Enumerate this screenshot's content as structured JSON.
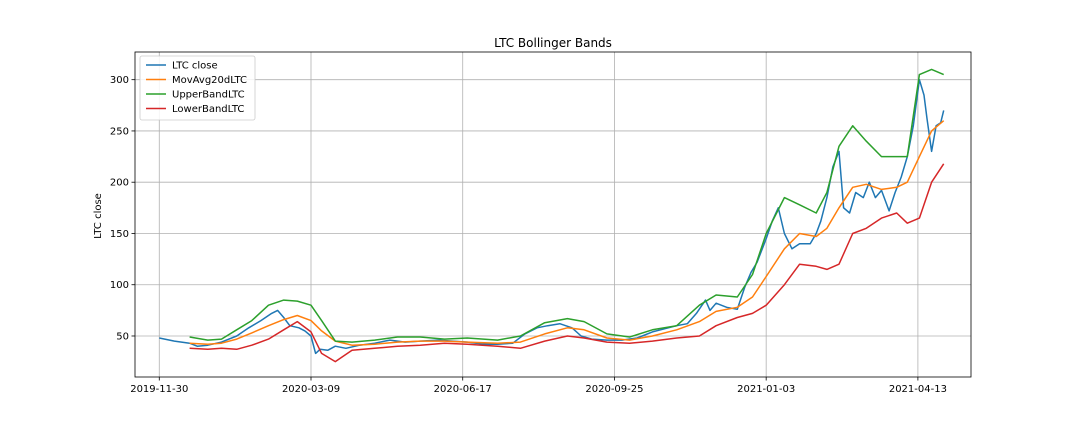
{
  "chart_data": {
    "type": "line",
    "title": "LTC Bollinger Bands",
    "xlabel": "",
    "ylabel": "LTC close",
    "x_start": "2019-11-30",
    "x_ticks": [
      "2019-11-30",
      "2020-03-09",
      "2020-06-17",
      "2020-09-25",
      "2021-01-03",
      "2021-04-13"
    ],
    "xlim": [
      "2019-11-14",
      "2021-05-18"
    ],
    "y_ticks": [
      50,
      100,
      150,
      200,
      250,
      300
    ],
    "ylim": [
      10,
      327
    ],
    "grid": true,
    "legend_position": "top-left",
    "series": [
      {
        "name": "LTC close",
        "color": "#1f77b4",
        "points": [
          [
            "2019-11-30",
            48
          ],
          [
            "2019-12-10",
            45
          ],
          [
            "2019-12-20",
            43
          ],
          [
            "2019-12-25",
            40
          ],
          [
            "2020-01-01",
            41
          ],
          [
            "2020-01-10",
            44
          ],
          [
            "2020-01-20",
            50
          ],
          [
            "2020-01-28",
            58
          ],
          [
            "2020-02-05",
            65
          ],
          [
            "2020-02-12",
            72
          ],
          [
            "2020-02-16",
            75
          ],
          [
            "2020-02-20",
            68
          ],
          [
            "2020-02-24",
            60
          ],
          [
            "2020-03-01",
            58
          ],
          [
            "2020-03-05",
            55
          ],
          [
            "2020-03-09",
            50
          ],
          [
            "2020-03-12",
            33
          ],
          [
            "2020-03-15",
            37
          ],
          [
            "2020-03-20",
            36
          ],
          [
            "2020-03-25",
            40
          ],
          [
            "2020-04-01",
            38
          ],
          [
            "2020-04-10",
            41
          ],
          [
            "2020-04-20",
            43
          ],
          [
            "2020-04-30",
            46
          ],
          [
            "2020-05-10",
            44
          ],
          [
            "2020-05-20",
            45
          ],
          [
            "2020-06-01",
            46
          ],
          [
            "2020-06-10",
            45
          ],
          [
            "2020-06-20",
            44
          ],
          [
            "2020-07-01",
            42
          ],
          [
            "2020-07-10",
            42
          ],
          [
            "2020-07-20",
            43
          ],
          [
            "2020-07-28",
            52
          ],
          [
            "2020-08-05",
            58
          ],
          [
            "2020-08-12",
            60
          ],
          [
            "2020-08-20",
            62
          ],
          [
            "2020-08-28",
            58
          ],
          [
            "2020-09-03",
            50
          ],
          [
            "2020-09-10",
            47
          ],
          [
            "2020-09-20",
            46
          ],
          [
            "2020-09-30",
            46
          ],
          [
            "2020-10-10",
            48
          ],
          [
            "2020-10-20",
            54
          ],
          [
            "2020-10-28",
            57
          ],
          [
            "2020-11-05",
            60
          ],
          [
            "2020-11-12",
            62
          ],
          [
            "2020-11-18",
            72
          ],
          [
            "2020-11-24",
            85
          ],
          [
            "2020-11-27",
            75
          ],
          [
            "2020-12-01",
            82
          ],
          [
            "2020-12-08",
            78
          ],
          [
            "2020-12-15",
            76
          ],
          [
            "2020-12-20",
            98
          ],
          [
            "2020-12-24",
            112
          ],
          [
            "2020-12-28",
            122
          ],
          [
            "2021-01-03",
            145
          ],
          [
            "2021-01-07",
            162
          ],
          [
            "2021-01-11",
            175
          ],
          [
            "2021-01-15",
            150
          ],
          [
            "2021-01-20",
            135
          ],
          [
            "2021-01-25",
            140
          ],
          [
            "2021-02-01",
            140
          ],
          [
            "2021-02-05",
            150
          ],
          [
            "2021-02-08",
            162
          ],
          [
            "2021-02-12",
            185
          ],
          [
            "2021-02-16",
            215
          ],
          [
            "2021-02-20",
            230
          ],
          [
            "2021-02-23",
            175
          ],
          [
            "2021-02-27",
            170
          ],
          [
            "2021-03-03",
            190
          ],
          [
            "2021-03-08",
            185
          ],
          [
            "2021-03-12",
            200
          ],
          [
            "2021-03-16",
            185
          ],
          [
            "2021-03-20",
            192
          ],
          [
            "2021-03-25",
            172
          ],
          [
            "2021-03-29",
            190
          ],
          [
            "2021-04-02",
            205
          ],
          [
            "2021-04-06",
            225
          ],
          [
            "2021-04-10",
            255
          ],
          [
            "2021-04-14",
            300
          ],
          [
            "2021-04-17",
            285
          ],
          [
            "2021-04-19",
            262
          ],
          [
            "2021-04-22",
            230
          ],
          [
            "2021-04-25",
            255
          ],
          [
            "2021-04-28",
            258
          ],
          [
            "2021-04-30",
            270
          ]
        ]
      },
      {
        "name": "MovAvg20dLTC",
        "color": "#ff7f0e",
        "points": [
          [
            "2019-12-20",
            43
          ],
          [
            "2020-01-01",
            42
          ],
          [
            "2020-01-10",
            43
          ],
          [
            "2020-01-20",
            47
          ],
          [
            "2020-01-30",
            53
          ],
          [
            "2020-02-10",
            60
          ],
          [
            "2020-02-20",
            66
          ],
          [
            "2020-02-29",
            70
          ],
          [
            "2020-03-09",
            65
          ],
          [
            "2020-03-16",
            55
          ],
          [
            "2020-03-25",
            45
          ],
          [
            "2020-04-05",
            41
          ],
          [
            "2020-04-20",
            42
          ],
          [
            "2020-05-05",
            44
          ],
          [
            "2020-05-20",
            45
          ],
          [
            "2020-06-05",
            45
          ],
          [
            "2020-06-20",
            44
          ],
          [
            "2020-07-10",
            43
          ],
          [
            "2020-07-25",
            44
          ],
          [
            "2020-08-10",
            52
          ],
          [
            "2020-08-25",
            58
          ],
          [
            "2020-09-05",
            56
          ],
          [
            "2020-09-20",
            48
          ],
          [
            "2020-10-05",
            46
          ],
          [
            "2020-10-20",
            50
          ],
          [
            "2020-11-05",
            56
          ],
          [
            "2020-11-20",
            64
          ],
          [
            "2020-12-01",
            74
          ],
          [
            "2020-12-15",
            78
          ],
          [
            "2020-12-25",
            88
          ],
          [
            "2021-01-03",
            108
          ],
          [
            "2021-01-15",
            135
          ],
          [
            "2021-01-25",
            150
          ],
          [
            "2021-02-05",
            147
          ],
          [
            "2021-02-12",
            155
          ],
          [
            "2021-02-20",
            175
          ],
          [
            "2021-03-01",
            195
          ],
          [
            "2021-03-10",
            198
          ],
          [
            "2021-03-20",
            193
          ],
          [
            "2021-03-30",
            195
          ],
          [
            "2021-04-06",
            200
          ],
          [
            "2021-04-14",
            225
          ],
          [
            "2021-04-22",
            250
          ],
          [
            "2021-04-30",
            260
          ]
        ]
      },
      {
        "name": "UpperBandLTC",
        "color": "#2ca02c",
        "points": [
          [
            "2019-12-20",
            49
          ],
          [
            "2020-01-01",
            46
          ],
          [
            "2020-01-10",
            47
          ],
          [
            "2020-01-20",
            56
          ],
          [
            "2020-01-30",
            65
          ],
          [
            "2020-02-10",
            80
          ],
          [
            "2020-02-20",
            85
          ],
          [
            "2020-02-29",
            84
          ],
          [
            "2020-03-09",
            80
          ],
          [
            "2020-03-16",
            65
          ],
          [
            "2020-03-25",
            45
          ],
          [
            "2020-04-05",
            44
          ],
          [
            "2020-04-20",
            46
          ],
          [
            "2020-05-05",
            49
          ],
          [
            "2020-05-20",
            49
          ],
          [
            "2020-06-05",
            47
          ],
          [
            "2020-06-20",
            48
          ],
          [
            "2020-07-10",
            46
          ],
          [
            "2020-07-25",
            50
          ],
          [
            "2020-08-10",
            63
          ],
          [
            "2020-08-25",
            67
          ],
          [
            "2020-09-05",
            64
          ],
          [
            "2020-09-20",
            52
          ],
          [
            "2020-10-05",
            49
          ],
          [
            "2020-10-20",
            56
          ],
          [
            "2020-11-05",
            60
          ],
          [
            "2020-11-20",
            80
          ],
          [
            "2020-12-01",
            90
          ],
          [
            "2020-12-15",
            88
          ],
          [
            "2020-12-25",
            110
          ],
          [
            "2021-01-03",
            150
          ],
          [
            "2021-01-15",
            185
          ],
          [
            "2021-01-25",
            178
          ],
          [
            "2021-02-05",
            170
          ],
          [
            "2021-02-12",
            190
          ],
          [
            "2021-02-20",
            235
          ],
          [
            "2021-03-01",
            255
          ],
          [
            "2021-03-10",
            240
          ],
          [
            "2021-03-20",
            225
          ],
          [
            "2021-03-30",
            225
          ],
          [
            "2021-04-06",
            225
          ],
          [
            "2021-04-14",
            305
          ],
          [
            "2021-04-22",
            310
          ],
          [
            "2021-04-30",
            305
          ]
        ]
      },
      {
        "name": "LowerBandLTC",
        "color": "#d62728",
        "points": [
          [
            "2019-12-20",
            38
          ],
          [
            "2020-01-01",
            37
          ],
          [
            "2020-01-10",
            38
          ],
          [
            "2020-01-20",
            37
          ],
          [
            "2020-01-30",
            41
          ],
          [
            "2020-02-10",
            47
          ],
          [
            "2020-02-20",
            56
          ],
          [
            "2020-02-29",
            64
          ],
          [
            "2020-03-09",
            54
          ],
          [
            "2020-03-16",
            33
          ],
          [
            "2020-03-25",
            25
          ],
          [
            "2020-04-05",
            36
          ],
          [
            "2020-04-20",
            38
          ],
          [
            "2020-05-05",
            40
          ],
          [
            "2020-05-20",
            41
          ],
          [
            "2020-06-05",
            43
          ],
          [
            "2020-06-20",
            42
          ],
          [
            "2020-07-10",
            40
          ],
          [
            "2020-07-25",
            38
          ],
          [
            "2020-08-10",
            45
          ],
          [
            "2020-08-25",
            50
          ],
          [
            "2020-09-05",
            48
          ],
          [
            "2020-09-20",
            44
          ],
          [
            "2020-10-05",
            43
          ],
          [
            "2020-10-20",
            45
          ],
          [
            "2020-11-05",
            48
          ],
          [
            "2020-11-20",
            50
          ],
          [
            "2020-12-01",
            60
          ],
          [
            "2020-12-15",
            68
          ],
          [
            "2020-12-25",
            72
          ],
          [
            "2021-01-03",
            80
          ],
          [
            "2021-01-15",
            100
          ],
          [
            "2021-01-25",
            120
          ],
          [
            "2021-02-05",
            118
          ],
          [
            "2021-02-12",
            115
          ],
          [
            "2021-02-20",
            120
          ],
          [
            "2021-03-01",
            150
          ],
          [
            "2021-03-10",
            155
          ],
          [
            "2021-03-20",
            165
          ],
          [
            "2021-03-30",
            170
          ],
          [
            "2021-04-06",
            160
          ],
          [
            "2021-04-14",
            165
          ],
          [
            "2021-04-22",
            200
          ],
          [
            "2021-04-30",
            218
          ]
        ]
      }
    ]
  }
}
